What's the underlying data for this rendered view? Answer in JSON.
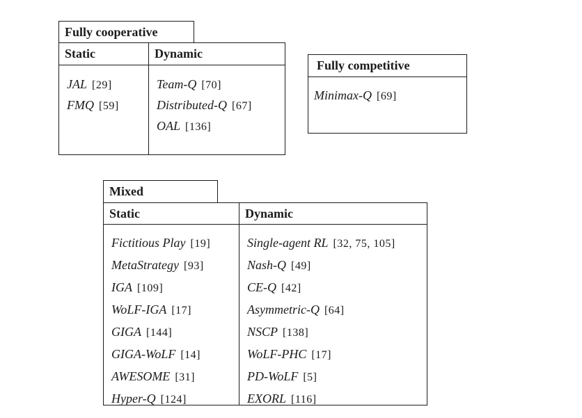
{
  "colors": {
    "border": "#1b1b1b",
    "text": "#1b1b1b",
    "background": "#ffffff"
  },
  "boxes": {
    "cooperative": {
      "tab": "Fully cooperative",
      "columns": [
        {
          "header": "Static",
          "entries": [
            {
              "name": "JAL",
              "ref": "[29]"
            },
            {
              "name": "FMQ",
              "ref": "[59]"
            }
          ]
        },
        {
          "header": "Dynamic",
          "entries": [
            {
              "name": "Team-Q",
              "ref": "[70]"
            },
            {
              "name": "Distributed-Q",
              "ref": "[67]"
            },
            {
              "name": "OAL",
              "ref": "[136]"
            }
          ]
        }
      ]
    },
    "competitive": {
      "header": "Fully competitive",
      "entries": [
        {
          "name": "Minimax-Q",
          "ref": "[69]"
        }
      ]
    },
    "mixed": {
      "tab": "Mixed",
      "columns": [
        {
          "header": "Static",
          "entries": [
            {
              "name": "Fictitious Play",
              "ref": "[19]"
            },
            {
              "name": "MetaStrategy",
              "ref": "[93]"
            },
            {
              "name": "IGA",
              "ref": "[109]"
            },
            {
              "name": "WoLF-IGA",
              "ref": "[17]"
            },
            {
              "name": "GIGA",
              "ref": "[144]"
            },
            {
              "name": "GIGA-WoLF",
              "ref": "[14]"
            },
            {
              "name": "AWESOME",
              "ref": "[31]"
            },
            {
              "name": "Hyper-Q",
              "ref": "[124]"
            }
          ]
        },
        {
          "header": "Dynamic",
          "entries": [
            {
              "name": "Single-agent RL",
              "ref": "[32, 75, 105]"
            },
            {
              "name": "Nash-Q",
              "ref": "[49]"
            },
            {
              "name": "CE-Q",
              "ref": "[42]"
            },
            {
              "name": "Asymmetric-Q",
              "ref": "[64]"
            },
            {
              "name": "NSCP",
              "ref": "[138]"
            },
            {
              "name": "WoLF-PHC",
              "ref": "[17]"
            },
            {
              "name": "PD-WoLF",
              "ref": "[5]"
            },
            {
              "name": "EXORL",
              "ref": "[116]"
            }
          ]
        }
      ]
    }
  }
}
